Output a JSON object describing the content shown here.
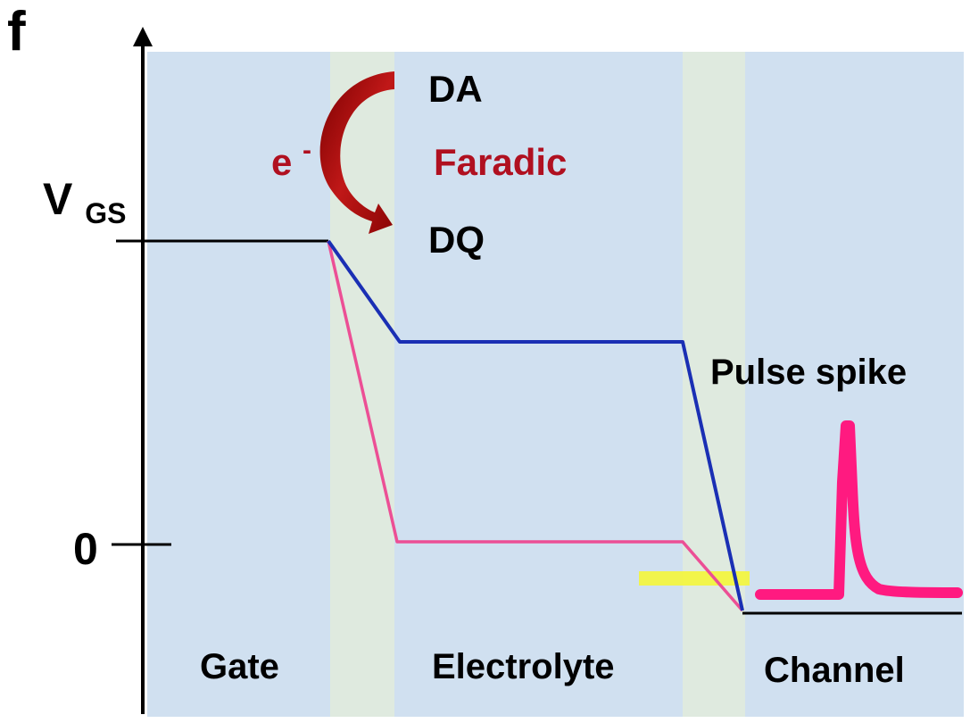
{
  "panel_label": "f",
  "axis": {
    "y_label_main": "V",
    "y_label_sub": "GS",
    "zero_label": "0"
  },
  "regions": {
    "gate": "Gate",
    "electrolyte": "Electrolyte",
    "channel": "Channel"
  },
  "reaction": {
    "reactant": "DA",
    "product": "DQ",
    "process": "Faradic",
    "electron": "e",
    "electron_charge": "-"
  },
  "annotation": {
    "pulse": "Pulse spike"
  },
  "colors": {
    "region_fill": "#d0e0f0",
    "interface_fill": "#dfeadf",
    "axis": "#000000",
    "blue_line": "#1a2fb4",
    "pink_line": "#ec4f95",
    "spike": "#ff1a80",
    "highlight": "#f4f63a",
    "arrow": "#b01010",
    "faradic_text": "#b01020"
  }
}
